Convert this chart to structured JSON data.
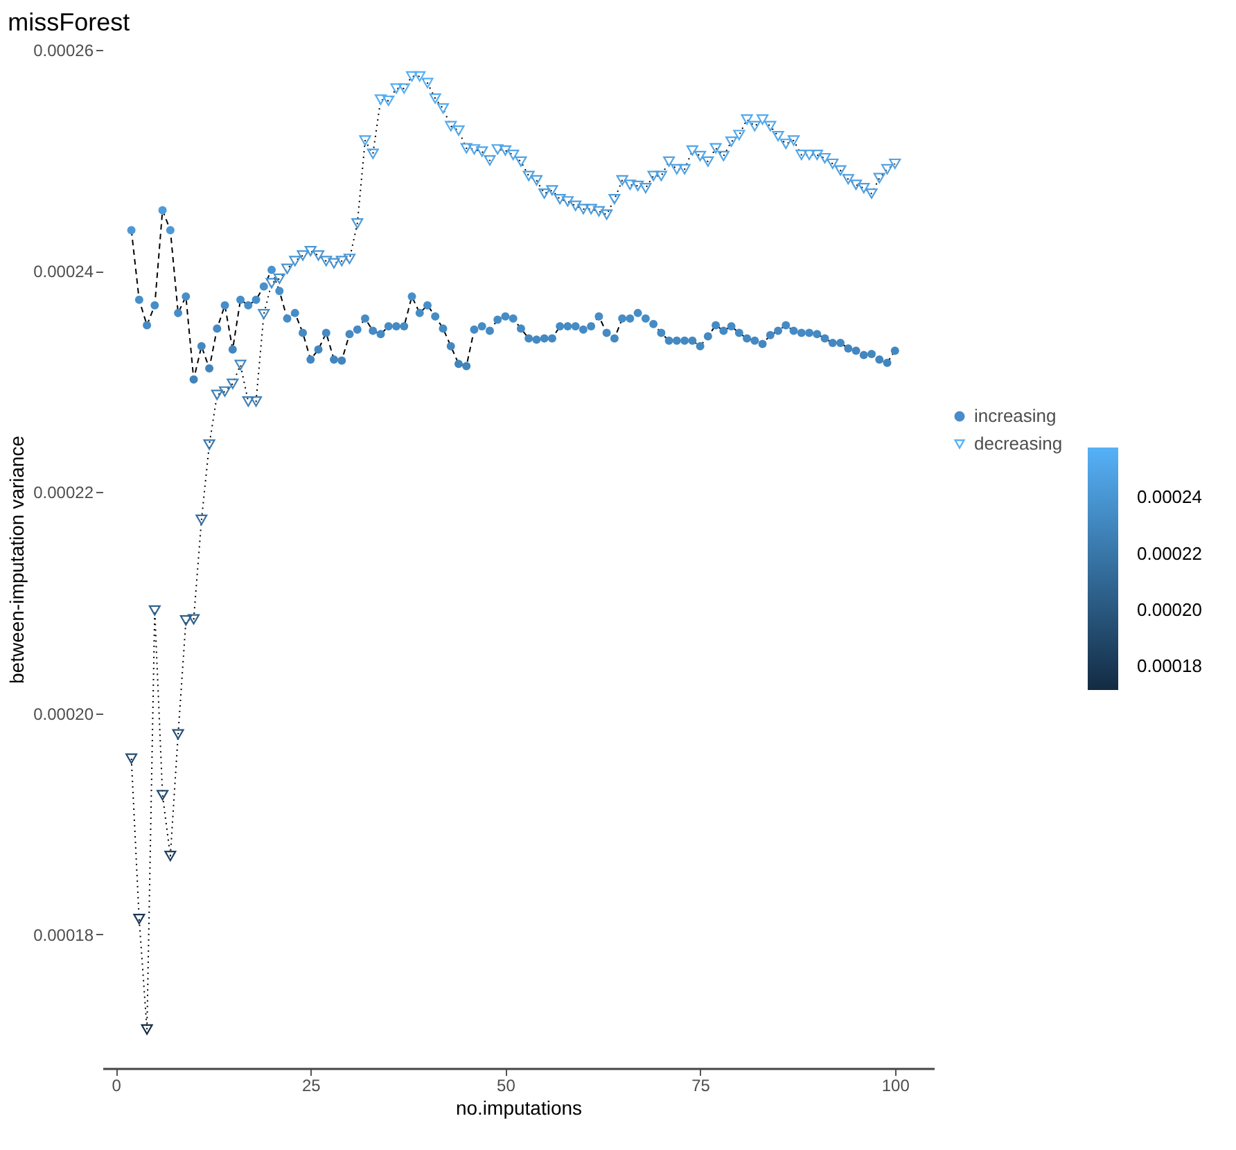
{
  "chart_data": {
    "type": "line",
    "title": "missForest",
    "xlabel": "no.imputations",
    "ylabel": "between-imputation variance",
    "x": [
      2,
      3,
      4,
      5,
      6,
      7,
      8,
      9,
      10,
      11,
      12,
      13,
      14,
      15,
      16,
      17,
      18,
      19,
      20,
      21,
      22,
      23,
      24,
      25,
      26,
      27,
      28,
      29,
      30,
      31,
      32,
      33,
      34,
      35,
      36,
      37,
      38,
      39,
      40,
      41,
      42,
      43,
      44,
      45,
      46,
      47,
      48,
      49,
      50,
      51,
      52,
      53,
      54,
      55,
      56,
      57,
      58,
      59,
      60,
      61,
      62,
      63,
      64,
      65,
      66,
      67,
      68,
      69,
      70,
      71,
      72,
      73,
      74,
      75,
      76,
      77,
      78,
      79,
      80,
      81,
      82,
      83,
      84,
      85,
      86,
      87,
      88,
      89,
      90,
      91,
      92,
      93,
      94,
      95,
      96,
      97,
      98,
      99,
      100
    ],
    "series": [
      {
        "name": "increasing",
        "color": "#000000",
        "marker": "circle",
        "line_style": "dashed",
        "values": [
          0.0002437,
          0.0002374,
          0.0002351,
          0.0002369,
          0.0002455,
          0.0002437,
          0.0002362,
          0.0002377,
          0.0002302,
          0.0002332,
          0.0002312,
          0.0002348,
          0.0002369,
          0.0002329,
          0.0002374,
          0.0002369,
          0.0002374,
          0.0002386,
          0.0002401,
          0.0002382,
          0.0002357,
          0.0002362,
          0.0002344,
          0.000232,
          0.0002329,
          0.0002344,
          0.000232,
          0.0002319,
          0.0002343,
          0.0002347,
          0.0002357,
          0.0002346,
          0.0002343,
          0.000235,
          0.000235,
          0.000235,
          0.0002377,
          0.0002362,
          0.0002369,
          0.0002359,
          0.0002348,
          0.0002332,
          0.0002316,
          0.0002314,
          0.0002347,
          0.000235,
          0.0002346,
          0.0002356,
          0.0002359,
          0.0002357,
          0.0002348,
          0.0002339,
          0.0002338,
          0.0002339,
          0.0002339,
          0.000235,
          0.000235,
          0.000235,
          0.0002347,
          0.000235,
          0.0002359,
          0.0002344,
          0.0002339,
          0.0002357,
          0.0002357,
          0.0002362,
          0.0002357,
          0.0002352,
          0.0002344,
          0.0002337,
          0.0002337,
          0.0002337,
          0.0002337,
          0.0002332,
          0.0002341,
          0.0002351,
          0.0002346,
          0.000235,
          0.0002344,
          0.0002339,
          0.0002337,
          0.0002334,
          0.0002342,
          0.0002346,
          0.0002351,
          0.0002346,
          0.0002344,
          0.0002344,
          0.0002343,
          0.0002339,
          0.0002335,
          0.0002335,
          0.000233,
          0.0002328,
          0.0002324,
          0.0002325,
          0.000232,
          0.0002317,
          0.0002328
        ]
      },
      {
        "name": "decreasing",
        "color": "#000000",
        "marker": "triangle",
        "line_style": "dotted",
        "values": [
          0.0001959,
          0.0001814,
          0.0001714,
          0.0002093,
          0.0001926,
          0.0001871,
          0.0001981,
          0.0002084,
          0.0002085,
          0.0002175,
          0.0002243,
          0.0002288,
          0.0002291,
          0.0002298,
          0.0002315,
          0.0002282,
          0.0002282,
          0.0002361,
          0.0002389,
          0.0002393,
          0.0002402,
          0.0002409,
          0.0002414,
          0.0002418,
          0.0002414,
          0.0002409,
          0.0002407,
          0.0002409,
          0.0002411,
          0.0002443,
          0.0002518,
          0.0002506,
          0.0002555,
          0.0002554,
          0.0002565,
          0.0002565,
          0.0002576,
          0.0002576,
          0.000257,
          0.0002556,
          0.0002547,
          0.0002531,
          0.0002527,
          0.0002511,
          0.000251,
          0.0002508,
          0.00025,
          0.000251,
          0.0002509,
          0.0002505,
          0.0002499,
          0.0002486,
          0.0002482,
          0.000247,
          0.0002473,
          0.0002465,
          0.0002463,
          0.0002459,
          0.0002456,
          0.0002456,
          0.0002454,
          0.0002451,
          0.0002465,
          0.0002482,
          0.0002478,
          0.0002477,
          0.0002475,
          0.0002486,
          0.0002486,
          0.0002499,
          0.0002492,
          0.0002492,
          0.0002509,
          0.0002504,
          0.0002499,
          0.0002511,
          0.0002504,
          0.0002517,
          0.0002523,
          0.0002537,
          0.0002531,
          0.0002537,
          0.0002531,
          0.0002522,
          0.0002515,
          0.0002518,
          0.0002505,
          0.0002505,
          0.0002505,
          0.0002502,
          0.0002497,
          0.0002491,
          0.0002483,
          0.0002478,
          0.0002475,
          0.000247,
          0.0002484,
          0.0002492,
          0.0002497
        ]
      }
    ],
    "xlim": [
      -1.7,
      105
    ],
    "xticks": [
      0,
      25,
      50,
      75,
      100
    ],
    "ylim": [
      0.0001679,
      0.00026
    ],
    "yticks": [
      0.00018,
      {
        "value": 0.0002,
        "label": "0.00020"
      },
      0.00022,
      0.00024,
      0.00026
    ],
    "clim": [
      0.0001714,
      0.0002576
    ],
    "cticks": [
      0.00018,
      {
        "value": 0.0002,
        "label": "0.00020"
      },
      0.00022,
      0.00024
    ],
    "grid": false,
    "legend": "right"
  }
}
